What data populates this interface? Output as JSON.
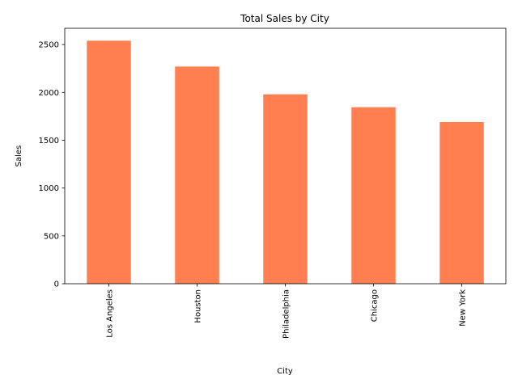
{
  "chart_data": {
    "type": "bar",
    "title": "Total Sales by City",
    "xlabel": "City",
    "ylabel": "Sales",
    "categories": [
      "Los Angeles",
      "Houston",
      "Philadelphia",
      "Chicago",
      "New York"
    ],
    "values": [
      2540,
      2270,
      1980,
      1845,
      1690
    ],
    "ylim": [
      0,
      2670
    ],
    "yticks": [
      0,
      500,
      1000,
      1500,
      2000,
      2500
    ],
    "bar_color": "#ff7f50",
    "grid": false,
    "legend": "none"
  }
}
